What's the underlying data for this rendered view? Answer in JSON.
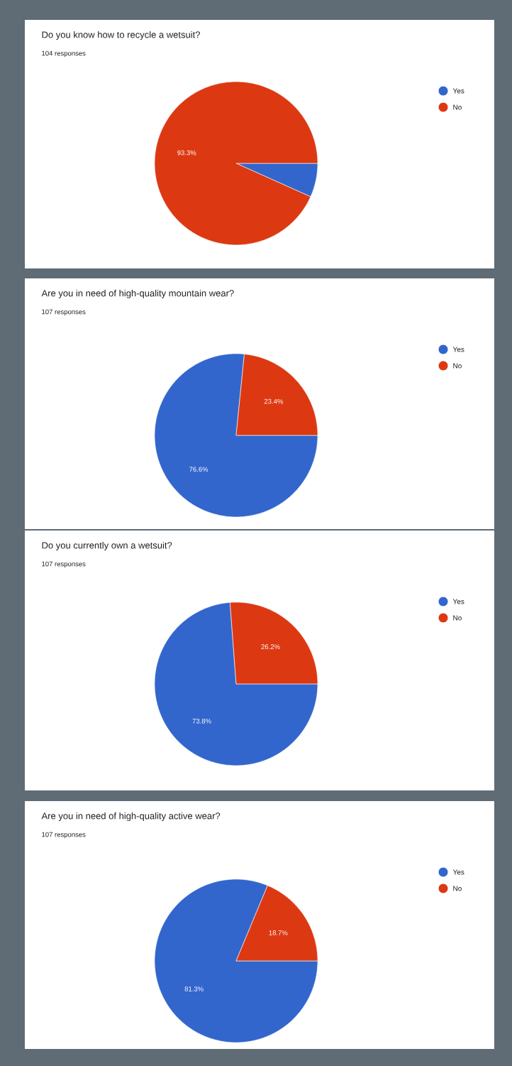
{
  "chart_data": [
    {
      "type": "pie",
      "title": "Do you know how to recycle a wetsuit?",
      "subtitle": "104 responses",
      "categories": [
        "Yes",
        "No"
      ],
      "values": [
        6.7,
        93.3
      ],
      "colors": [
        "#3366cc",
        "#dc3912"
      ],
      "value_labels": [
        null,
        "93.3%"
      ],
      "legend": "top right"
    },
    {
      "type": "pie",
      "title": "Are you in need of high-quality mountain wear?",
      "subtitle": "107 responses",
      "categories": [
        "Yes",
        "No"
      ],
      "values": [
        76.6,
        23.4
      ],
      "colors": [
        "#3366cc",
        "#dc3912"
      ],
      "value_labels": [
        "76.6%",
        "23.4%"
      ],
      "legend": "top right"
    },
    {
      "type": "pie",
      "title": "Do you currently own a wetsuit?",
      "subtitle": "107 responses",
      "categories": [
        "Yes",
        "No"
      ],
      "values": [
        73.8,
        26.2
      ],
      "colors": [
        "#3366cc",
        "#dc3912"
      ],
      "value_labels": [
        "73.8%",
        "26.2%"
      ],
      "legend": "top right"
    },
    {
      "type": "pie",
      "title": "Are you in need of high-quality active wear?",
      "subtitle": "107 responses",
      "categories": [
        "Yes",
        "No"
      ],
      "values": [
        81.3,
        18.7
      ],
      "colors": [
        "#3366cc",
        "#dc3912"
      ],
      "value_labels": [
        "81.3%",
        "18.7%"
      ],
      "legend": "top right"
    }
  ]
}
